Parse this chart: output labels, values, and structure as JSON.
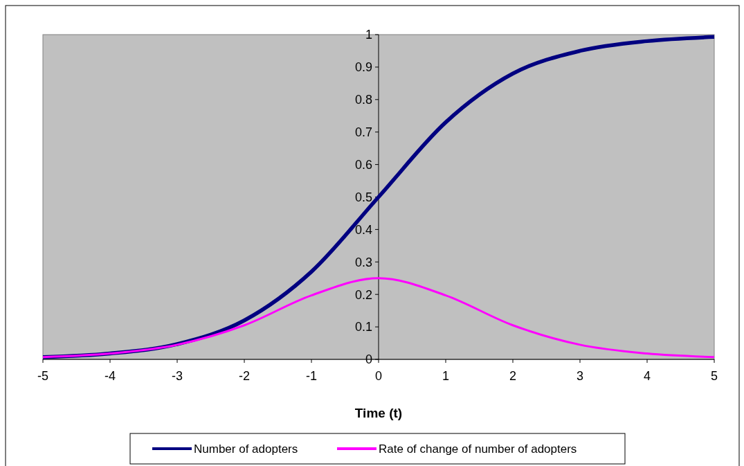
{
  "chart_data": {
    "type": "line",
    "xlabel": "Time (t)",
    "x": [
      -5,
      -4,
      -3,
      -2,
      -1,
      0,
      1,
      2,
      3,
      4,
      5
    ],
    "series": [
      {
        "name": "Number of adopters",
        "color": "#000080",
        "values": [
          0.007,
          0.018,
          0.047,
          0.12,
          0.27,
          0.5,
          0.73,
          0.88,
          0.95,
          0.98,
          0.993
        ]
      },
      {
        "name": "Rate of change of number of adopters",
        "color": "#ff00ff",
        "values": [
          0.007,
          0.018,
          0.045,
          0.105,
          0.197,
          0.25,
          0.197,
          0.105,
          0.045,
          0.018,
          0.007
        ]
      }
    ],
    "xlim": [
      -5,
      5
    ],
    "xticks": [
      -5,
      -4,
      -3,
      -2,
      -1,
      0,
      1,
      2,
      3,
      4,
      5
    ],
    "ylim": [
      0,
      1
    ],
    "yticks": [
      0,
      0.1,
      0.2,
      0.3,
      0.4,
      0.5,
      0.6,
      0.7,
      0.8,
      0.9,
      1
    ],
    "grid": false,
    "legend": "bottom",
    "marker": "none",
    "line_style": "solid"
  }
}
